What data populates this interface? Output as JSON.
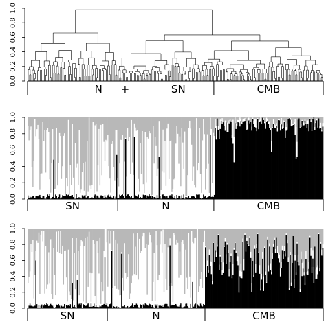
{
  "chart_data": [
    {
      "type": "dendrogram",
      "title": "",
      "xlabel": "",
      "ylabel": "",
      "ylim": [
        0,
        1.0
      ],
      "yticks": [
        "0.0",
        "0.2",
        "0.4",
        "0.6",
        "0.8",
        "1.0"
      ],
      "leaf_count": 220,
      "max_height": 0.98,
      "groups": [
        {
          "label": "N",
          "x_range": [
            0,
            0.47
          ]
        },
        {
          "label": "+",
          "x_range": [
            0.47,
            0.6
          ]
        },
        {
          "label": "SN",
          "x_range": [
            0.6,
            0.63
          ]
        },
        {
          "label": "CMB",
          "x_range": [
            0.63,
            1.0
          ]
        }
      ],
      "bar_group_labels": [
        "N",
        "+",
        "SN",
        "CMB"
      ],
      "bar_boundaries": [
        0.63
      ],
      "colors": {
        "line": "#000000"
      }
    },
    {
      "type": "bar",
      "stacked": true,
      "title": "",
      "ylim": [
        0,
        1.0
      ],
      "yticks": [
        "0.0",
        "0.2",
        "0.4",
        "0.6",
        "0.8",
        "1.0"
      ],
      "individuals": 300,
      "series": [
        {
          "color": "#000000"
        },
        {
          "color": "#ffffff"
        },
        {
          "color": "#b8b8b8"
        }
      ],
      "groups": [
        {
          "label": "SN",
          "share": 0.305,
          "profile": "gray-white"
        },
        {
          "label": "N",
          "share": 0.325,
          "profile": "gray-white"
        },
        {
          "label": "CMB",
          "share": 0.37,
          "profile": "black"
        }
      ]
    },
    {
      "type": "bar",
      "stacked": true,
      "title": "",
      "ylim": [
        0,
        1.0
      ],
      "yticks": [
        "0.0",
        "0.2",
        "0.4",
        "0.6",
        "0.8",
        "1.0"
      ],
      "individuals": 300,
      "series": [
        {
          "color": "#000000"
        },
        {
          "color": "#ffffff"
        },
        {
          "color": "#b8b8b8"
        }
      ],
      "groups": [
        {
          "label": "SN",
          "share": 0.27,
          "profile": "gray-white"
        },
        {
          "label": "N",
          "share": 0.33,
          "profile": "gray-white"
        },
        {
          "label": "CMB",
          "share": 0.4,
          "profile": "black-gray"
        }
      ]
    }
  ]
}
